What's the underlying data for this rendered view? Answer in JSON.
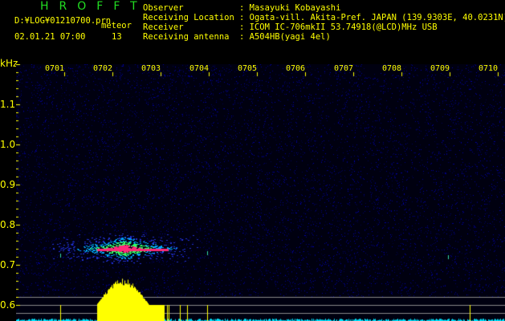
{
  "title": "HROFFT",
  "file": "D:¥LOG¥01210700.prn",
  "mode": "meteor",
  "datetime": "02.01.21 07:00",
  "count": "13",
  "info": [
    {
      "label": "Observer",
      "value": "Masayuki Kobayashi"
    },
    {
      "label": "Receiving Location",
      "value": "Ogata-vill. Akita-Pref. JAPAN (139.9303E, 40.0231N)"
    },
    {
      "label": "Receiver",
      "value": "ICOM IC-706mkII 53.74918(@LCD)MHz USB"
    },
    {
      "label": "Receiving antenna",
      "value": "A504HB(yagi 4el)"
    }
  ],
  "y_unit": "kHz",
  "y_ticks": [
    "1.1",
    "1.0",
    "0.9",
    "0.8",
    "0.7",
    "0.6"
  ],
  "x_ticks": [
    "0701",
    "0702",
    "0703",
    "0704",
    "0705",
    "0706",
    "0707",
    "0708",
    "0709",
    "0710"
  ],
  "colors": {
    "text": "#ffff00",
    "title": "#22dd22",
    "noise": "#0a0a7a",
    "echo": "#ff2a7a",
    "histogram": "#ffff00",
    "histogram_low": "#00e5ff"
  }
}
